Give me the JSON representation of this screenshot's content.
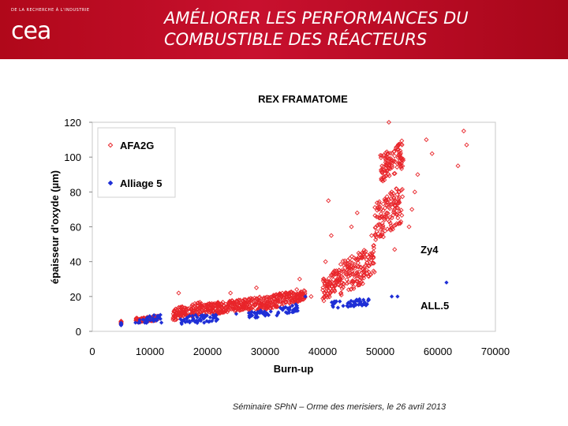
{
  "header": {
    "logo_tagline": "DE LA RECHERCHE À L'INDUSTRIE",
    "logo_mark": "cea",
    "title_line1": "AMÉLIORER LES PERFORMANCES DU",
    "title_line2": "COMBUSTIBLE DES RÉACTEURS",
    "background_color": "#c8102e"
  },
  "chart_data": {
    "type": "scatter",
    "title": "REX FRAMATOME",
    "xlabel": "Burn-up",
    "ylabel": "épaisseur d'oxyde (µm)",
    "xlim": [
      0,
      70000
    ],
    "ylim": [
      0,
      120
    ],
    "xticks": [
      "0",
      "10000",
      "20000",
      "30000",
      "40000",
      "50000",
      "60000",
      "70000"
    ],
    "yticks": [
      "0",
      "20",
      "40",
      "60",
      "80",
      "100",
      "120"
    ],
    "legend_position": "top-left",
    "series": [
      {
        "name": "AFA2G",
        "marker": "open-diamond",
        "color": "#e8252a",
        "clusters": [
          {
            "x": [
              5000,
              5000
            ],
            "y": [
              4,
              7
            ]
          },
          {
            "x": [
              7500,
              11500
            ],
            "y": [
              5,
              9
            ]
          },
          {
            "x": [
              14000,
              19000
            ],
            "y": [
              6,
              17
            ]
          },
          {
            "x": [
              19000,
              27000
            ],
            "y": [
              9,
              19
            ]
          },
          {
            "x": [
              27000,
              35000
            ],
            "y": [
              11,
              23
            ]
          },
          {
            "x": [
              35000,
              37000
            ],
            "y": [
              16,
              24
            ]
          },
          {
            "x": [
              40000,
              43000
            ],
            "y": [
              17,
              37
            ]
          },
          {
            "x": [
              43000,
              49000
            ],
            "y": [
              20,
              50
            ]
          },
          {
            "x": [
              49000,
              54000
            ],
            "y": [
              50,
              85
            ]
          },
          {
            "x": [
              50000,
              54000
            ],
            "y": [
              85,
              110
            ]
          }
        ],
        "points": [
          [
            51500,
            120
          ],
          [
            58000,
            110
          ],
          [
            59000,
            102
          ],
          [
            64500,
            115
          ],
          [
            65000,
            107
          ],
          [
            63500,
            95
          ],
          [
            56500,
            90
          ],
          [
            56000,
            80
          ],
          [
            55500,
            70
          ],
          [
            55000,
            60
          ],
          [
            41000,
            75
          ],
          [
            41500,
            55
          ],
          [
            45000,
            60
          ],
          [
            46000,
            68
          ],
          [
            48500,
            55
          ],
          [
            49000,
            34
          ],
          [
            36000,
            30
          ],
          [
            35500,
            24
          ],
          [
            24000,
            22
          ],
          [
            28500,
            25
          ],
          [
            38000,
            20
          ],
          [
            40500,
            40
          ],
          [
            15000,
            22
          ],
          [
            52500,
            47
          ],
          [
            53500,
            62
          ]
        ]
      },
      {
        "name": "Alliage 5",
        "marker": "filled-diamond",
        "color": "#1f2fd6",
        "clusters": [
          {
            "x": [
              5000,
              5000
            ],
            "y": [
              3,
              7
            ]
          },
          {
            "x": [
              8000,
              12000
            ],
            "y": [
              4,
              10
            ]
          },
          {
            "x": [
              15000,
              22000
            ],
            "y": [
              3,
              11
            ]
          },
          {
            "x": [
              27000,
              31000
            ],
            "y": [
              7,
              13
            ]
          },
          {
            "x": [
              32000,
              36000
            ],
            "y": [
              9,
              16
            ]
          },
          {
            "x": [
              41000,
              48000
            ],
            "y": [
              13,
              19
            ]
          }
        ],
        "points": [
          [
            52000,
            20
          ],
          [
            53000,
            20
          ],
          [
            61500,
            28
          ],
          [
            47500,
            15
          ],
          [
            25000,
            10
          ],
          [
            12000,
            5
          ],
          [
            7500,
            5
          ],
          [
            21500,
            6
          ],
          [
            37000,
            20
          ],
          [
            48000,
            18
          ]
        ]
      }
    ],
    "annotations": [
      {
        "text": "Zy4",
        "x": 57000,
        "y": 47
      },
      {
        "text": "ALL.5",
        "x": 57000,
        "y": 15
      }
    ]
  },
  "footer": {
    "text": "Séminaire SPhN – Orme des merisiers, le 26 avril 2013"
  }
}
